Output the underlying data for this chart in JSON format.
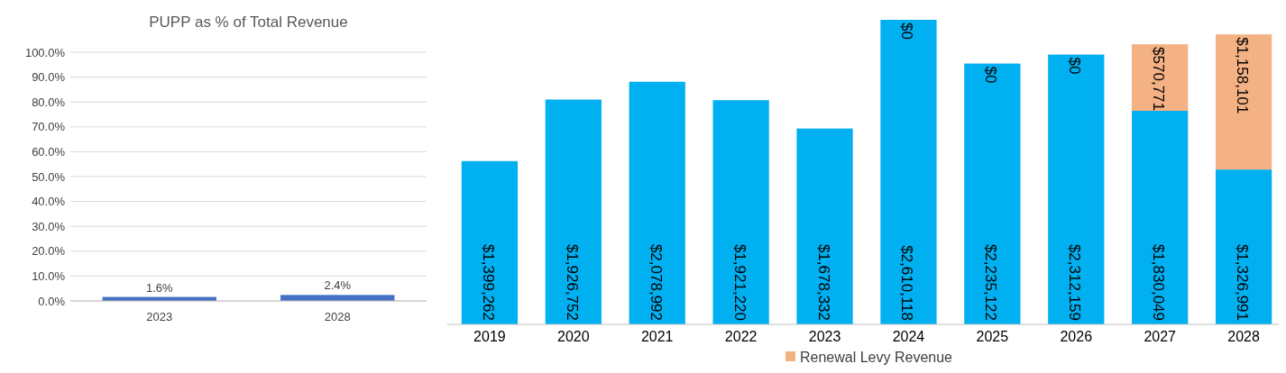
{
  "chart_data": [
    {
      "type": "bar",
      "title": "PUPP as % of Total Revenue",
      "categories": [
        "2023",
        "2028"
      ],
      "ylim": [
        0,
        100
      ],
      "yticks": [
        {
          "value": 0,
          "label": "0.0%"
        },
        {
          "value": 10,
          "label": "10.0%"
        },
        {
          "value": 20,
          "label": "20.0%"
        },
        {
          "value": 30,
          "label": "30.0%"
        },
        {
          "value": 40,
          "label": "40.0%"
        },
        {
          "value": 50,
          "label": "50.0%"
        },
        {
          "value": 60,
          "label": "60.0%"
        },
        {
          "value": 70,
          "label": "70.0%"
        },
        {
          "value": 80,
          "label": "80.0%"
        },
        {
          "value": 90,
          "label": "90.0%"
        },
        {
          "value": 100,
          "label": "100.0%"
        }
      ],
      "grid": "y",
      "series": [
        {
          "color": "#4472c4",
          "values": [
            1.6,
            2.4
          ],
          "value_labels": [
            "1.6%",
            "2.4%"
          ]
        }
      ]
    },
    {
      "type": "bar",
      "stacked": true,
      "legend": "bottom",
      "categories": [
        "2019",
        "2020",
        "2021",
        "2022",
        "2023",
        "2024",
        "2025",
        "2026",
        "2027",
        "2028"
      ],
      "series": [
        {
          "color": "#00b0f0",
          "values": [
            1399262,
            1926752,
            2078992,
            1921220,
            1678332,
            2610118,
            2235122,
            2312159,
            1830049,
            1326991
          ],
          "value_labels": [
            "$1,399,262",
            "$1,926,752",
            "$2,078,992",
            "$1,921,220",
            "$1,678,332",
            "$2,610,118",
            "$2,235,122",
            "$2,312,159",
            "$1,830,049",
            "$1,326,991"
          ]
        },
        {
          "name": "Renewal Levy Revenue",
          "color": "#f4b183",
          "values": [
            null,
            null,
            null,
            null,
            null,
            0,
            0,
            0,
            570771,
            1158101
          ],
          "value_labels": [
            null,
            null,
            null,
            null,
            null,
            "$0",
            "$0",
            "$0",
            "$570,771",
            "$1,158,101"
          ]
        }
      ]
    }
  ]
}
